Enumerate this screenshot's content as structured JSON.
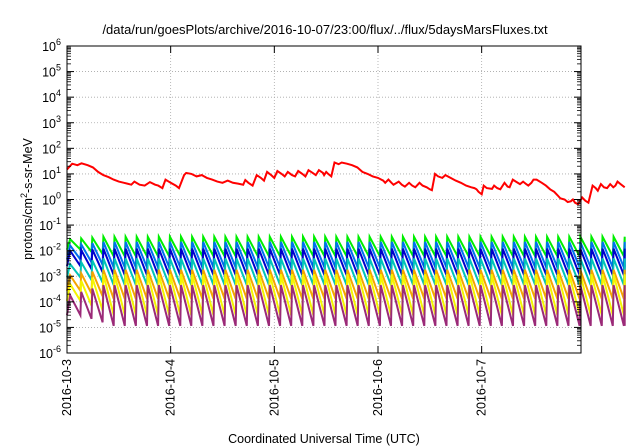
{
  "chart_data": {
    "type": "line",
    "title": "/data/run/goesPlots/archive/2016-10-07/23:00/flux/../flux/5daysMarsFluxes.txt",
    "xlabel": "Coordinated Universal Time (UTC)",
    "ylabel": "protons/cm2-s-sr-MeV",
    "ylabel_parts": {
      "pre": "protons/cm",
      "sup": "2",
      "post": "-s-sr-MeV"
    },
    "yscale": "log",
    "ylim": [
      1e-06,
      1000000.0
    ],
    "y_tick_labels": [
      {
        "base": "10",
        "exp": "6"
      },
      {
        "base": "10",
        "exp": "5"
      },
      {
        "base": "10",
        "exp": "4"
      },
      {
        "base": "10",
        "exp": "3"
      },
      {
        "base": "10",
        "exp": "2"
      },
      {
        "base": "10",
        "exp": "1"
      },
      {
        "base": "10",
        "exp": "0"
      },
      {
        "base": "10",
        "exp": "-1"
      },
      {
        "base": "10",
        "exp": "-2"
      },
      {
        "base": "10",
        "exp": "-3"
      },
      {
        "base": "10",
        "exp": "-4"
      },
      {
        "base": "10",
        "exp": "-5"
      },
      {
        "base": "10",
        "exp": "-6"
      }
    ],
    "xlim": [
      "2016-10-03",
      "2016-10-07T23:00"
    ],
    "x_ticks": [
      "2016-10-3",
      "2016-10-4",
      "2016-10-5",
      "2016-10-6",
      "2016-10-7"
    ],
    "grid": true,
    "legend": "none",
    "series": [
      {
        "color": "#ff0000",
        "points": [
          [
            0.0,
            15
          ],
          [
            0.05,
            25
          ],
          [
            0.1,
            22
          ],
          [
            0.14,
            26
          ],
          [
            0.2,
            22
          ],
          [
            0.25,
            18
          ],
          [
            0.3,
            12
          ],
          [
            0.35,
            9
          ],
          [
            0.4,
            7.5
          ],
          [
            0.45,
            6
          ],
          [
            0.5,
            5
          ],
          [
            0.55,
            4.5
          ],
          [
            0.62,
            3.8
          ],
          [
            0.65,
            5
          ],
          [
            0.7,
            3.8
          ],
          [
            0.75,
            3.5
          ],
          [
            0.8,
            4.8
          ],
          [
            0.85,
            3.8
          ],
          [
            0.88,
            3.5
          ],
          [
            0.92,
            2.8
          ],
          [
            0.95,
            6
          ],
          [
            1.0,
            4.5
          ],
          [
            1.05,
            3.5
          ],
          [
            1.08,
            2.8
          ],
          [
            1.13,
            9
          ],
          [
            1.15,
            11
          ],
          [
            1.2,
            10
          ],
          [
            1.25,
            8
          ],
          [
            1.3,
            9
          ],
          [
            1.35,
            7
          ],
          [
            1.4,
            6
          ],
          [
            1.45,
            5
          ],
          [
            1.5,
            4.5
          ],
          [
            1.55,
            5.5
          ],
          [
            1.6,
            4.5
          ],
          [
            1.65,
            4.2
          ],
          [
            1.7,
            3.8
          ],
          [
            1.72,
            5.8
          ],
          [
            1.75,
            4.5
          ],
          [
            1.79,
            3.5
          ],
          [
            1.83,
            9
          ],
          [
            1.87,
            7
          ],
          [
            1.9,
            5.5
          ],
          [
            1.93,
            12
          ],
          [
            1.97,
            9
          ],
          [
            2.0,
            7
          ],
          [
            2.03,
            13
          ],
          [
            2.07,
            10
          ],
          [
            2.1,
            8
          ],
          [
            2.13,
            12
          ],
          [
            2.17,
            9
          ],
          [
            2.2,
            8
          ],
          [
            2.23,
            13
          ],
          [
            2.27,
            10
          ],
          [
            2.3,
            8
          ],
          [
            2.33,
            14
          ],
          [
            2.37,
            11
          ],
          [
            2.4,
            9
          ],
          [
            2.43,
            14
          ],
          [
            2.47,
            11
          ],
          [
            2.48,
            9
          ],
          [
            2.5,
            12
          ],
          [
            2.52,
            10
          ],
          [
            2.55,
            8
          ],
          [
            2.58,
            28
          ],
          [
            2.62,
            24
          ],
          [
            2.65,
            28
          ],
          [
            2.7,
            25
          ],
          [
            2.75,
            22
          ],
          [
            2.8,
            18
          ],
          [
            2.85,
            12
          ],
          [
            2.9,
            10
          ],
          [
            2.95,
            8
          ],
          [
            3.0,
            7
          ],
          [
            3.05,
            5.5
          ],
          [
            3.07,
            4.5
          ],
          [
            3.1,
            6
          ],
          [
            3.13,
            4.5
          ],
          [
            3.15,
            3.8
          ],
          [
            3.2,
            5
          ],
          [
            3.23,
            3.8
          ],
          [
            3.26,
            3.2
          ],
          [
            3.3,
            4.5
          ],
          [
            3.33,
            3.5
          ],
          [
            3.36,
            3
          ],
          [
            3.4,
            4.5
          ],
          [
            3.43,
            3.5
          ],
          [
            3.47,
            3
          ],
          [
            3.5,
            2.5
          ],
          [
            3.52,
            2.3
          ],
          [
            3.55,
            10
          ],
          [
            3.58,
            8
          ],
          [
            3.62,
            7
          ],
          [
            3.65,
            9
          ],
          [
            3.7,
            7
          ],
          [
            3.75,
            5.5
          ],
          [
            3.8,
            4.5
          ],
          [
            3.85,
            3.5
          ],
          [
            3.9,
            3
          ],
          [
            3.93,
            2.8
          ],
          [
            3.95,
            2.5
          ],
          [
            3.97,
            2
          ],
          [
            4.0,
            1.6
          ],
          [
            4.02,
            3.5
          ],
          [
            4.05,
            2.8
          ],
          [
            4.1,
            2.6
          ],
          [
            4.12,
            3.5
          ],
          [
            4.15,
            2.8
          ],
          [
            4.18,
            2.5
          ],
          [
            4.22,
            4.5
          ],
          [
            4.25,
            3.2
          ],
          [
            4.27,
            3
          ],
          [
            4.3,
            6
          ],
          [
            4.33,
            5
          ],
          [
            4.37,
            4
          ],
          [
            4.4,
            5
          ],
          [
            4.43,
            4
          ],
          [
            4.45,
            3.5
          ],
          [
            4.48,
            4.5
          ],
          [
            4.5,
            6
          ],
          [
            4.53,
            6
          ],
          [
            4.58,
            4.5
          ],
          [
            4.62,
            3.5
          ],
          [
            4.66,
            2.5
          ],
          [
            4.7,
            2
          ],
          [
            4.73,
            1.5
          ],
          [
            4.76,
            1.1
          ],
          [
            4.8,
            1.0
          ],
          [
            4.83,
            0.8
          ],
          [
            4.86,
            0.85
          ],
          [
            4.88,
            1.0
          ],
          [
            4.9,
            0.75
          ],
          [
            4.93,
            0.65
          ],
          [
            4.97,
            1.2
          ],
          [
            5.0,
            0.9
          ],
          [
            5.03,
            0.75
          ],
          [
            5.07,
            3.5
          ],
          [
            5.1,
            2.8
          ],
          [
            5.12,
            2.2
          ],
          [
            5.15,
            4
          ],
          [
            5.18,
            3
          ],
          [
            5.21,
            2.8
          ],
          [
            5.24,
            4
          ],
          [
            5.27,
            3
          ],
          [
            5.29,
            3.5
          ],
          [
            5.31,
            5
          ],
          [
            5.34,
            4
          ],
          [
            5.38,
            3
          ]
        ]
      },
      {
        "color": "#00ee00",
        "low": 0.006,
        "high": 0.035,
        "start_high": 0.028,
        "start_low": 0.011
      },
      {
        "color": "#0072ee",
        "low": 0.0022,
        "high": 0.022,
        "start_high": 0.016,
        "start_low": 0.0045
      },
      {
        "color": "#0000cc",
        "low": 0.0011,
        "high": 0.012,
        "start_high": 0.01,
        "start_low": 0.0025
      },
      {
        "color": "#00c4b8",
        "low": 0.00045,
        "high": 0.005,
        "start_high": 0.003,
        "start_low": 0.0009
      },
      {
        "color": "#f5a500",
        "low": 0.00013,
        "high": 0.0018,
        "start_high": 0.0011,
        "start_low": 0.00027
      },
      {
        "color": "#f5f500",
        "low": 3e-05,
        "high": 0.0012,
        "start_high": 0.0005,
        "start_low": 0.00011
      },
      {
        "color": "#9b2a78",
        "low": 1.15e-05,
        "high": 0.00045,
        "start_high": 0.00018,
        "start_low": 3e-05
      }
    ]
  }
}
